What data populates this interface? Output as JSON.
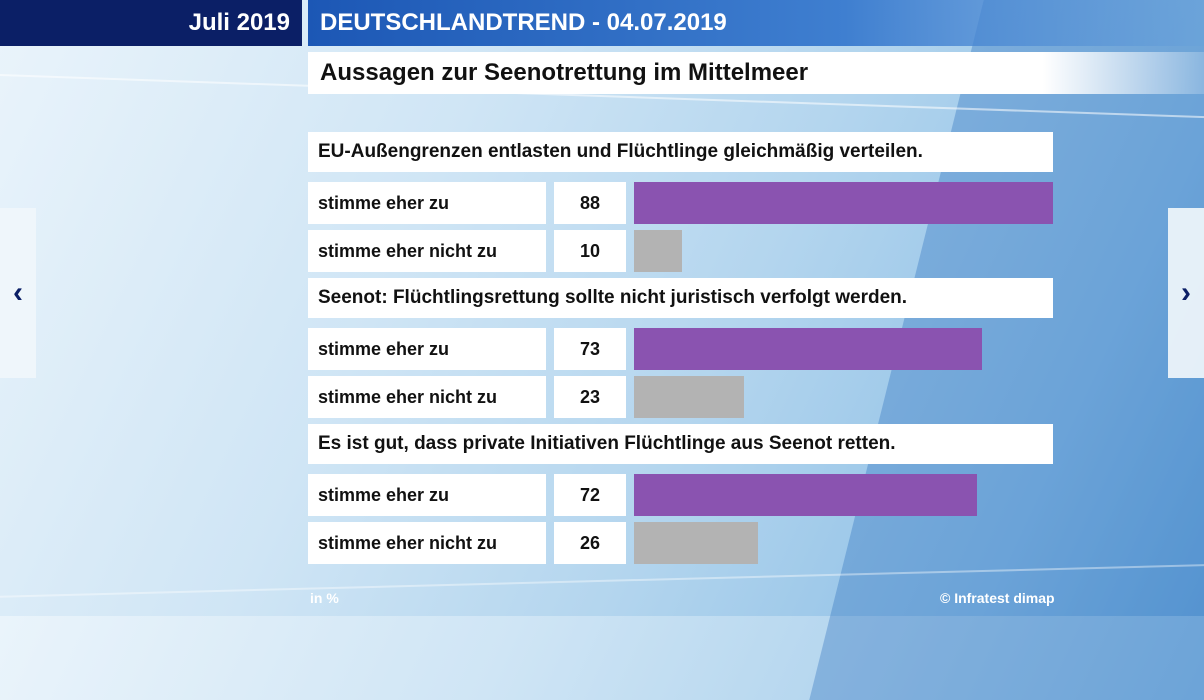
{
  "header": {
    "date_tag": "Juli 2019",
    "title": "DEUTSCHLANDTREND - 04.07.2019",
    "subtitle": "Aussagen zur Seenotrettung im Mittelmeer"
  },
  "nav": {
    "prev_glyph": "‹",
    "next_glyph": "›"
  },
  "footer": {
    "unit": "in %",
    "credit": "© Infratest dimap"
  },
  "colors": {
    "agree": "#8a53b0",
    "disagree": "#b3b3b3",
    "header_dark": "#0b1f66",
    "header_blue": "#1c57b5"
  },
  "chart_data": {
    "type": "bar",
    "orientation": "horizontal",
    "unit": "in %",
    "xlim": [
      0,
      88
    ],
    "groups": [
      {
        "statement": "EU-Außengrenzen entlasten und Flüchtlinge gleichmäßig verteilen.",
        "rows": [
          {
            "label": "stimme eher zu",
            "value": 88,
            "kind": "agree"
          },
          {
            "label": "stimme eher nicht zu",
            "value": 10,
            "kind": "disagree"
          }
        ]
      },
      {
        "statement": "Seenot: Flüchtlingsrettung sollte nicht juristisch verfolgt werden.",
        "rows": [
          {
            "label": "stimme eher zu",
            "value": 73,
            "kind": "agree"
          },
          {
            "label": "stimme eher nicht zu",
            "value": 23,
            "kind": "disagree"
          }
        ]
      },
      {
        "statement": "Es ist gut, dass private Initiativen Flüchtlinge aus Seenot retten.",
        "rows": [
          {
            "label": "stimme eher zu",
            "value": 72,
            "kind": "agree"
          },
          {
            "label": "stimme eher nicht zu",
            "value": 26,
            "kind": "disagree"
          }
        ]
      }
    ]
  }
}
